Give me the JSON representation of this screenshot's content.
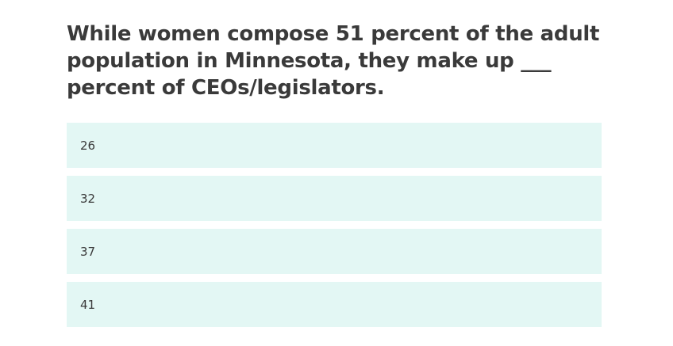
{
  "question": {
    "text": "While women compose 51 percent of the adult population in Minnesota, they make up ___ percent of CEOs/legislators."
  },
  "options": [
    {
      "label": "26"
    },
    {
      "label": "32"
    },
    {
      "label": "37"
    },
    {
      "label": "41"
    }
  ],
  "colors": {
    "text": "#3a3a3a",
    "option_background": "#e3f7f4",
    "page_background": "#ffffff"
  }
}
